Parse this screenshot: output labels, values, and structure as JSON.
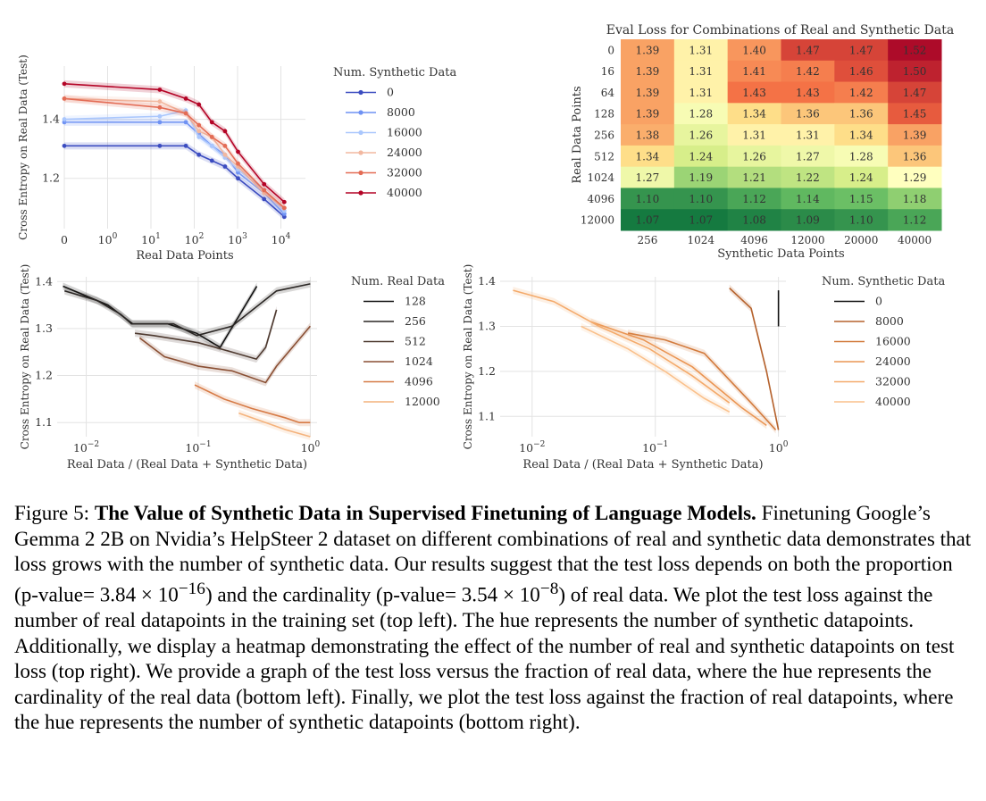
{
  "chart_data": [
    {
      "id": "top-left",
      "type": "line",
      "xlabel": "Real Data Points",
      "ylabel": "Cross Entropy on Real Data (Test)",
      "xscale": "symlog",
      "x_ticks": [
        {
          "v": 0,
          "label": "0"
        },
        {
          "v": 1,
          "base": "10",
          "exp": "0"
        },
        {
          "v": 10,
          "base": "10",
          "exp": "1"
        },
        {
          "v": 100,
          "base": "10",
          "exp": "2"
        },
        {
          "v": 1000,
          "base": "10",
          "exp": "3"
        },
        {
          "v": 10000,
          "base": "10",
          "exp": "4"
        }
      ],
      "y_ticks": [
        1.2,
        1.4
      ],
      "ylim": [
        1.03,
        1.58
      ],
      "legend_title": "Num. Synthetic Data",
      "x": [
        0,
        16,
        64,
        128,
        256,
        512,
        1024,
        4096,
        12000
      ],
      "series": [
        {
          "name": "0",
          "color": "#3b4cc0",
          "values": [
            1.31,
            1.31,
            1.31,
            1.28,
            1.26,
            1.24,
            1.2,
            1.13,
            1.07
          ]
        },
        {
          "name": "8000",
          "color": "#6f92f3",
          "values": [
            1.39,
            1.39,
            1.39,
            1.35,
            1.31,
            1.28,
            1.22,
            1.15,
            1.08
          ]
        },
        {
          "name": "16000",
          "color": "#aac7fd",
          "values": [
            1.4,
            1.41,
            1.43,
            1.34,
            1.31,
            1.27,
            1.23,
            1.16,
            1.09
          ]
        },
        {
          "name": "24000",
          "color": "#f2b8a0",
          "values": [
            1.47,
            1.46,
            1.42,
            1.36,
            1.34,
            1.28,
            1.24,
            1.15,
            1.1
          ]
        },
        {
          "name": "32000",
          "color": "#e36c55",
          "values": [
            1.47,
            1.44,
            1.42,
            1.38,
            1.34,
            1.31,
            1.25,
            1.16,
            1.1
          ]
        },
        {
          "name": "40000",
          "color": "#b40426",
          "values": [
            1.52,
            1.5,
            1.47,
            1.45,
            1.39,
            1.36,
            1.29,
            1.18,
            1.12
          ]
        }
      ]
    },
    {
      "id": "top-right",
      "type": "heatmap",
      "title": "Eval Loss for Combinations of Real and Synthetic Data",
      "xlabel": "Synthetic Data Points",
      "ylabel": "Real Data Points",
      "rows": [
        "0",
        "16",
        "64",
        "128",
        "256",
        "512",
        "1024",
        "4096",
        "12000"
      ],
      "cols": [
        "256",
        "1024",
        "4096",
        "12000",
        "20000",
        "40000"
      ],
      "values": [
        [
          1.39,
          1.31,
          1.4,
          1.47,
          1.47,
          1.52
        ],
        [
          1.39,
          1.31,
          1.41,
          1.42,
          1.46,
          1.5
        ],
        [
          1.39,
          1.31,
          1.43,
          1.43,
          1.42,
          1.47
        ],
        [
          1.39,
          1.28,
          1.34,
          1.36,
          1.36,
          1.45
        ],
        [
          1.38,
          1.26,
          1.31,
          1.31,
          1.34,
          1.39
        ],
        [
          1.34,
          1.24,
          1.26,
          1.27,
          1.28,
          1.36
        ],
        [
          1.27,
          1.19,
          1.21,
          1.22,
          1.24,
          1.29
        ],
        [
          1.1,
          1.1,
          1.12,
          1.14,
          1.15,
          1.18
        ],
        [
          1.07,
          1.07,
          1.08,
          1.09,
          1.1,
          1.12
        ]
      ],
      "vmin": 1.05,
      "vmax": 1.53
    },
    {
      "id": "bottom-left",
      "type": "line",
      "xlabel": "Real Data / (Real Data + Synthetic Data)",
      "ylabel": "Cross Entropy on Real Data (Test)",
      "xscale": "log",
      "x_ticks": [
        {
          "v": 0.01,
          "base": "10",
          "exp": "−2"
        },
        {
          "v": 0.1,
          "base": "10",
          "exp": "−1"
        },
        {
          "v": 1,
          "base": "10",
          "exp": "0"
        }
      ],
      "y_ticks": [
        1.1,
        1.2,
        1.3,
        1.4
      ],
      "xlim": [
        0.0055,
        1.15
      ],
      "ylim": [
        1.07,
        1.41
      ],
      "legend_title": "Num. Real Data",
      "series": [
        {
          "name": "128",
          "color": "#111111",
          "points": [
            [
              0.0062,
              1.39
            ],
            [
              0.0156,
              1.35
            ],
            [
              0.026,
              1.31
            ],
            [
              0.0532,
              1.31
            ],
            [
              0.0965,
              1.29
            ],
            [
              0.1567,
              1.26
            ],
            [
              0.3333,
              1.39
            ]
          ]
        },
        {
          "name": "256",
          "color": "#2a2624",
          "points": [
            [
              0.0064,
              1.38
            ],
            [
              0.0124,
              1.36
            ],
            [
              0.0204,
              1.33
            ],
            [
              0.0253,
              1.31
            ],
            [
              0.06,
              1.31
            ],
            [
              0.097,
              1.285
            ],
            [
              0.2,
              1.305
            ],
            [
              0.5,
              1.38
            ],
            [
              1.0,
              1.395
            ]
          ]
        },
        {
          "name": "512",
          "color": "#4e3a30",
          "points": [
            [
              0.0272,
              1.29
            ],
            [
              0.04,
              1.285
            ],
            [
              0.1,
              1.27
            ],
            [
              0.2,
              1.25
            ],
            [
              0.33,
              1.235
            ],
            [
              0.4,
              1.26
            ],
            [
              0.5,
              1.34
            ]
          ]
        },
        {
          "name": "1024",
          "color": "#8a4f33",
          "points": [
            [
              0.03,
              1.28
            ],
            [
              0.05,
              1.24
            ],
            [
              0.1,
              1.22
            ],
            [
              0.2,
              1.21
            ],
            [
              0.4,
              1.185
            ],
            [
              0.5,
              1.22
            ],
            [
              1.0,
              1.305
            ]
          ]
        },
        {
          "name": "4096",
          "color": "#d67a45",
          "points": [
            [
              0.093,
              1.18
            ],
            [
              0.17,
              1.15
            ],
            [
              0.3,
              1.13
            ],
            [
              0.6,
              1.11
            ],
            [
              0.8,
              1.1
            ],
            [
              1.0,
              1.1
            ]
          ]
        },
        {
          "name": "12000",
          "color": "#f4b27c",
          "points": [
            [
              0.23,
              1.12
            ],
            [
              0.4,
              1.1
            ],
            [
              0.6,
              1.085
            ],
            [
              1.0,
              1.07
            ]
          ]
        }
      ]
    },
    {
      "id": "bottom-right",
      "type": "line",
      "xlabel": "Real Data / (Real Data + Synthetic Data)",
      "ylabel": "Cross Entropy on Real Data (Test)",
      "xscale": "log",
      "x_ticks": [
        {
          "v": 0.01,
          "base": "10",
          "exp": "−2"
        },
        {
          "v": 0.1,
          "base": "10",
          "exp": "−1"
        },
        {
          "v": 1,
          "base": "10",
          "exp": "0"
        }
      ],
      "y_ticks": [
        1.1,
        1.2,
        1.3,
        1.4
      ],
      "xlim": [
        0.0055,
        1.15
      ],
      "ylim": [
        1.055,
        1.41
      ],
      "legend_title": "Num. Synthetic Data",
      "series": [
        {
          "name": "0",
          "color": "#111111",
          "points": [
            [
              1.0,
              1.38
            ],
            [
              1.0,
              1.3
            ]
          ]
        },
        {
          "name": "8000",
          "color": "#b5622d",
          "points": [
            [
              0.4,
              1.385
            ],
            [
              0.6,
              1.34
            ],
            [
              0.8,
              1.2
            ],
            [
              1.0,
              1.07
            ]
          ]
        },
        {
          "name": "16000",
          "color": "#d27a3c",
          "points": [
            [
              0.06,
              1.285
            ],
            [
              0.12,
              1.27
            ],
            [
              0.25,
              1.24
            ],
            [
              0.6,
              1.13
            ],
            [
              0.95,
              1.07
            ]
          ]
        },
        {
          "name": "24000",
          "color": "#ea9553",
          "points": [
            [
              0.03,
              1.31
            ],
            [
              0.08,
              1.27
            ],
            [
              0.2,
              1.21
            ],
            [
              0.5,
              1.12
            ],
            [
              0.8,
              1.08
            ]
          ]
        },
        {
          "name": "32000",
          "color": "#f4aa6b",
          "points": [
            [
              0.007,
              1.38
            ],
            [
              0.015,
              1.355
            ],
            [
              0.035,
              1.3
            ],
            [
              0.09,
              1.25
            ],
            [
              0.2,
              1.19
            ],
            [
              0.4,
              1.13
            ]
          ]
        },
        {
          "name": "40000",
          "color": "#fac08b",
          "points": [
            [
              0.025,
              1.3
            ],
            [
              0.06,
              1.25
            ],
            [
              0.12,
              1.2
            ],
            [
              0.25,
              1.14
            ],
            [
              0.4,
              1.11
            ]
          ]
        }
      ]
    }
  ],
  "caption": {
    "label": "Figure 5: ",
    "title": "The Value of Synthetic Data in Supervised Finetuning of Language Models.",
    "body": " Finetuning Google’s Gemma 2 2B on Nvidia’s HelpSteer 2 dataset on different combinations of real and synthetic data demonstrates that loss grows with the number of synthetic data. Our results suggest that the test loss depends on both the proportion (p-value= 3.84 × 10",
    "exp1": "−16",
    "mid": ") and the cardinality (p-value= 3.54 × 10",
    "exp2": "−8",
    "end": ") of real data. We plot the test loss against the number of real datapoints in the training set (top left). The hue represents the number of synthetic datapoints. Additionally, we display a heatmap demonstrating the effect of the number of real and synthetic datapoints on test loss (top right). We provide a graph of the test loss versus the fraction of real data, where the hue represents the cardinality of the real data (bottom left). Finally, we plot the test loss against the fraction of real datapoints, where the hue represents the number of synthetic datapoints (bottom right)."
  }
}
